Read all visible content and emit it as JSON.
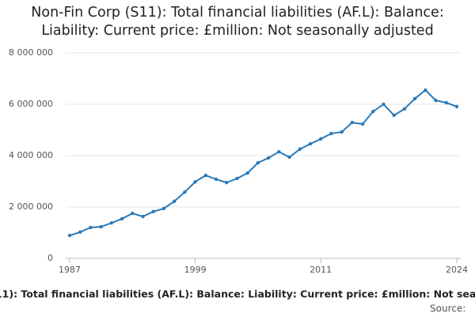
{
  "chart_data": {
    "type": "line",
    "title": "Non-Fin Corp (S11): Total financial liabilities (AF.L): Balance: Liability: Current price: £million: Not seasonally adjusted",
    "source": "Source:",
    "x": [
      1987,
      1988,
      1989,
      1990,
      1991,
      1992,
      1993,
      1994,
      1995,
      1996,
      1997,
      1998,
      1999,
      2000,
      2001,
      2002,
      2003,
      2004,
      2005,
      2006,
      2007,
      2008,
      2009,
      2010,
      2011,
      2012,
      2013,
      2014,
      2015,
      2016,
      2017,
      2018,
      2019,
      2020,
      2021,
      2022,
      2023,
      2024
    ],
    "series": [
      {
        "name": "Non-Fin Corp (S11): Total financial liabilities (AF.L): Balance: Liability: Current price: £million: Not seasonally adjusted",
        "color": "#2a7ab9",
        "values": [
          890000,
          1020000,
          1200000,
          1230000,
          1380000,
          1540000,
          1750000,
          1630000,
          1820000,
          1940000,
          2220000,
          2580000,
          2980000,
          3230000,
          3080000,
          2950000,
          3110000,
          3320000,
          3720000,
          3910000,
          4150000,
          3940000,
          4250000,
          4460000,
          4650000,
          4860000,
          4920000,
          5290000,
          5230000,
          5720000,
          6000000,
          5570000,
          5820000,
          6220000,
          6550000,
          6150000,
          6060000,
          5910000
        ]
      }
    ],
    "xlim": [
      1987,
      2024
    ],
    "xticks": [
      1987,
      1999,
      2011,
      2024
    ],
    "ylim": [
      0,
      8000000
    ],
    "yticks": [
      0,
      {
        "value": 2000000,
        "label": "2 000 000"
      },
      {
        "value": 4000000,
        "label": "4 000 000"
      },
      {
        "value": 6000000,
        "label": "6 000 000"
      },
      {
        "value": 8000000,
        "label": "8 000 000"
      }
    ],
    "grid": true
  }
}
